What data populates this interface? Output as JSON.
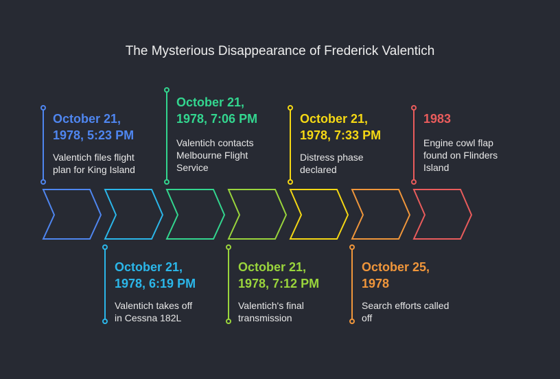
{
  "title": "The Mysterious Disappearance of Frederick Valentich",
  "events": [
    {
      "date_l1": "October 21,",
      "date_l2": "1978, 5:23 PM",
      "desc_l1": "Valentich files flight",
      "desc_l2": "plan for King Island",
      "desc_l3": "",
      "color": "#4f86f0"
    },
    {
      "date_l1": "October 21,",
      "date_l2": "1978, 6:19 PM",
      "desc_l1": "Valentich takes off",
      "desc_l2": "in Cessna 182L",
      "desc_l3": "",
      "color": "#2bb7ea"
    },
    {
      "date_l1": "October 21,",
      "date_l2": "1978, 7:06 PM",
      "desc_l1": "Valentich contacts",
      "desc_l2": "Melbourne Flight",
      "desc_l3": "Service",
      "color": "#33d68f"
    },
    {
      "date_l1": "October 21,",
      "date_l2": "1978, 7:12 PM",
      "desc_l1": "Valentich's final",
      "desc_l2": "transmission",
      "desc_l3": "",
      "color": "#9ad53c"
    },
    {
      "date_l1": "October 21,",
      "date_l2": "1978, 7:33 PM",
      "desc_l1": "Distress phase",
      "desc_l2": "declared",
      "desc_l3": "",
      "color": "#f5d814"
    },
    {
      "date_l1": "October 25,",
      "date_l2": "1978",
      "desc_l1": "Search efforts called",
      "desc_l2": "off",
      "desc_l3": "",
      "color": "#f0963b"
    },
    {
      "date_l1": "1983",
      "date_l2": "",
      "desc_l1": "Engine cowl flap",
      "desc_l2": "found on Flinders",
      "desc_l3": "Island",
      "color": "#ea5c5c"
    }
  ]
}
